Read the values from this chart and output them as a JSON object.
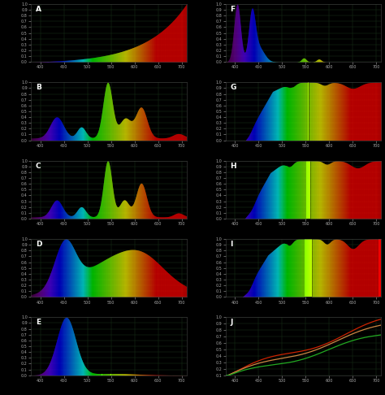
{
  "background_color": "#000000",
  "grid_color": "#1f3f1f",
  "text_color": "#ffffff",
  "axis_color": "#444444",
  "tick_color": "#aaaaaa",
  "xlim": [
    380,
    710
  ],
  "ylim": [
    0,
    1.0
  ],
  "yticks": [
    0,
    0.1,
    0.2,
    0.3,
    0.4,
    0.5,
    0.6,
    0.7,
    0.8,
    0.9,
    1.0
  ],
  "xticks": [
    400,
    450,
    500,
    550,
    600,
    650,
    700
  ],
  "panels": [
    "A",
    "B",
    "C",
    "D",
    "E",
    "F",
    "G",
    "H",
    "I",
    "J"
  ],
  "nrows": 5,
  "ncols": 2,
  "figsize": [
    4.74,
    4.86
  ],
  "dpi": 100,
  "J_ylim": [
    0.1,
    1.0
  ],
  "J_yticks": [
    0.1,
    0.2,
    0.3,
    0.4,
    0.5,
    0.6,
    0.7,
    0.8,
    0.9,
    1.0
  ]
}
